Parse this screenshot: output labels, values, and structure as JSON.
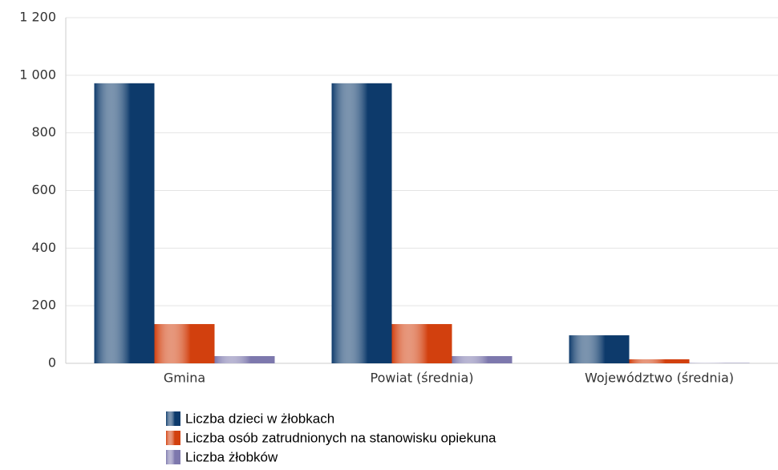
{
  "chart_data": {
    "type": "bar",
    "categories": [
      "Gmina",
      "Powiat (średnia)",
      "Województwo (średnia)"
    ],
    "series": [
      {
        "name": "Liczba dzieci w żłobkach",
        "color": "#0d3a6b",
        "values": [
          972,
          972,
          97
        ]
      },
      {
        "name": "Liczba osób zatrudnionych na stanowisku opiekuna",
        "color": "#d2400e",
        "values": [
          136,
          136,
          14
        ]
      },
      {
        "name": "Liczba żłobków",
        "color": "#7d78ad",
        "values": [
          25,
          25,
          1
        ]
      }
    ],
    "ylim": [
      0,
      1200
    ],
    "yticks": [
      0,
      200,
      400,
      600,
      800,
      {
        "value": 1000,
        "label": "1 000"
      },
      {
        "value": 1200,
        "label": "1 200"
      }
    ],
    "grid": true,
    "legend": "bottom"
  }
}
